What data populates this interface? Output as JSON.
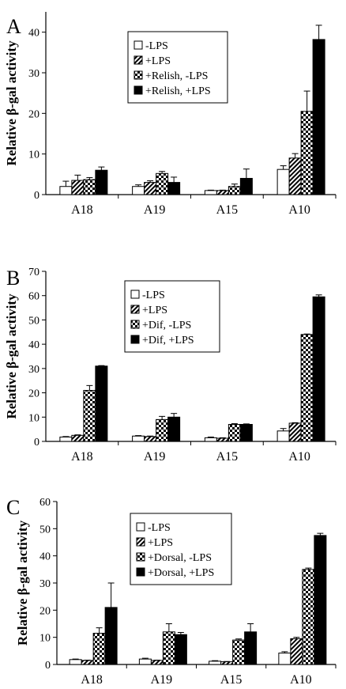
{
  "chart_data": [
    {
      "type": "bar",
      "panel_label": "A",
      "categories": [
        "A18",
        "A19",
        "A15",
        "A10"
      ],
      "ylabel": "Relative β-gal activity",
      "xlabel": "",
      "ylim": [
        0,
        45
      ],
      "yticks": [
        0,
        10,
        20,
        30,
        40
      ],
      "legend_position": "top-center",
      "series": [
        {
          "name": "-LPS",
          "pattern": "white",
          "values": [
            2,
            2,
            1,
            6.2
          ],
          "errors": [
            1.3,
            0.4,
            0.1,
            0.9
          ]
        },
        {
          "name": "+LPS",
          "pattern": "hatch",
          "values": [
            3.5,
            3,
            1,
            9
          ],
          "errors": [
            1.3,
            0.4,
            0.1,
            1.1
          ]
        },
        {
          "name": "+Relish, -LPS",
          "pattern": "checker",
          "values": [
            3.7,
            5.2,
            2,
            20.5
          ],
          "errors": [
            0.5,
            0.5,
            0.6,
            5
          ]
        },
        {
          "name": "+Relish, +LPS",
          "pattern": "black",
          "values": [
            6,
            3,
            4,
            38.2
          ],
          "errors": [
            0.8,
            1.3,
            2.3,
            3.5
          ]
        }
      ]
    },
    {
      "type": "bar",
      "panel_label": "B",
      "categories": [
        "A18",
        "A19",
        "A15",
        "A10"
      ],
      "ylabel": "Relative β-gal activity",
      "xlabel": "",
      "ylim": [
        0,
        70
      ],
      "yticks": [
        0,
        10,
        20,
        30,
        40,
        50,
        60,
        70
      ],
      "legend_position": "top-center",
      "series": [
        {
          "name": "-LPS",
          "pattern": "white",
          "values": [
            1.8,
            2.2,
            1.5,
            4.3
          ],
          "errors": [
            0.2,
            0.2,
            0.3,
            1
          ]
        },
        {
          "name": "+LPS",
          "pattern": "hatch",
          "values": [
            2.5,
            2,
            1.3,
            7.5
          ],
          "errors": [
            0.2,
            0.2,
            0.2,
            0.2
          ]
        },
        {
          "name": "+Dif, -LPS",
          "pattern": "checker",
          "values": [
            21,
            9,
            7,
            44
          ],
          "errors": [
            2,
            1.3,
            0.3,
            0.2
          ]
        },
        {
          "name": "+Dif, +LPS",
          "pattern": "black",
          "values": [
            31,
            10,
            7,
            59.5
          ],
          "errors": [
            0.2,
            1.5,
            0.2,
            0.8
          ]
        }
      ]
    },
    {
      "type": "bar",
      "panel_label": "C",
      "categories": [
        "A18",
        "A19",
        "A15",
        "A10"
      ],
      "ylabel": "Relative β-gal activity",
      "xlabel": "",
      "ylim": [
        0,
        60
      ],
      "yticks": [
        0,
        10,
        20,
        30,
        40,
        50,
        60
      ],
      "legend_position": "top-center",
      "series": [
        {
          "name": "-LPS",
          "pattern": "white",
          "values": [
            1.8,
            2,
            1.2,
            4.2
          ],
          "errors": [
            0.2,
            0.3,
            0.2,
            0.5
          ]
        },
        {
          "name": "+LPS",
          "pattern": "hatch",
          "values": [
            1.5,
            1.5,
            1,
            9.5
          ],
          "errors": [
            0.1,
            0.1,
            0.1,
            0.5
          ]
        },
        {
          "name": "+Dorsal, -LPS",
          "pattern": "checker",
          "values": [
            11.5,
            12,
            9,
            35
          ],
          "errors": [
            2,
            3,
            0.4,
            0.5
          ]
        },
        {
          "name": "+Dorsal, +LPS",
          "pattern": "black",
          "values": [
            21,
            11,
            12,
            47.5
          ],
          "errors": [
            9,
            0.8,
            3,
            0.8
          ]
        }
      ]
    }
  ]
}
